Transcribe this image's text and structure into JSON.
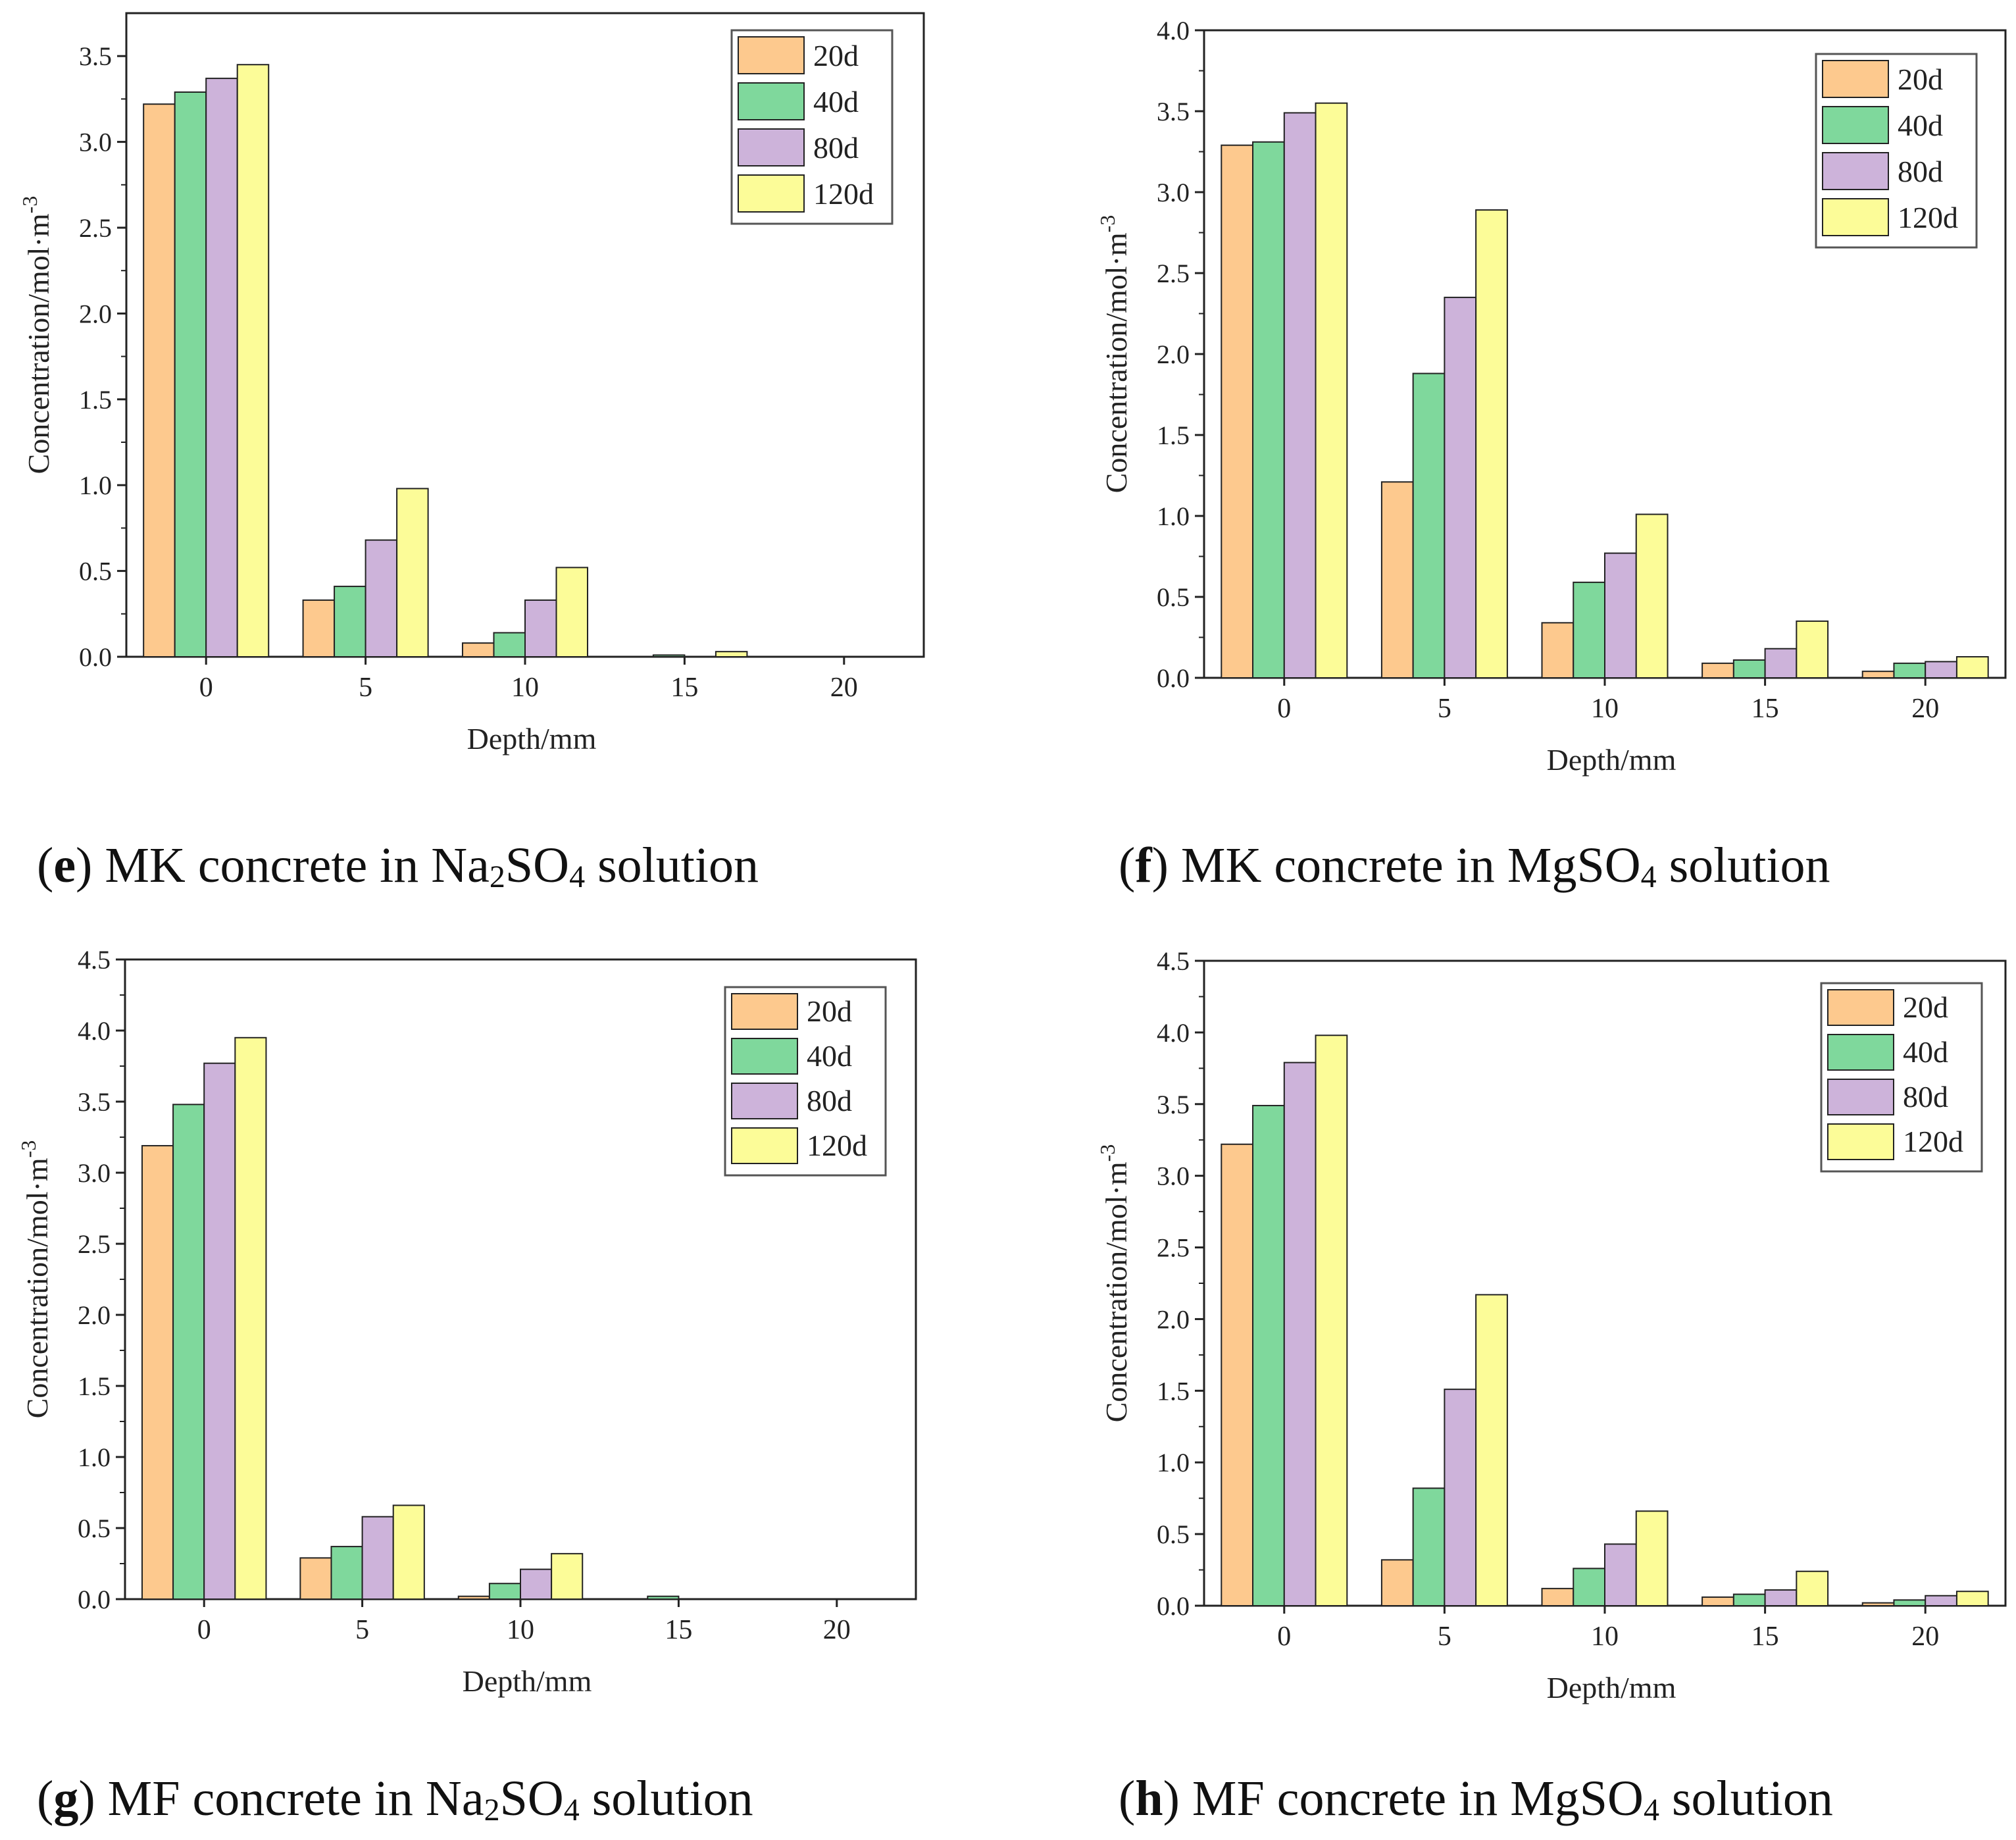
{
  "colors": {
    "20d": "#FDC98E",
    "40d": "#7FD89C",
    "80d": "#CDB3DA",
    "120d": "#FCFC98",
    "axis": "#222222"
  },
  "captions": [
    {
      "letter": "e",
      "pre": ") MK concrete in Na",
      "sub1": "2",
      "mid": "SO",
      "sub2": "4",
      "post": " solution"
    },
    {
      "letter": "f",
      "pre": ") MK concrete in MgSO",
      "sub1": "4",
      "mid": "",
      "sub2": "",
      "post": " solution"
    },
    {
      "letter": "g",
      "pre": ") MF concrete in Na",
      "sub1": "2",
      "mid": "SO",
      "sub2": "4",
      "post": " solution"
    },
    {
      "letter": "h",
      "pre": ") MF concrete in MgSO",
      "sub1": "4",
      "mid": "",
      "sub2": "",
      "post": " solution"
    }
  ],
  "chart_data": [
    {
      "type": "bar",
      "panel": "e",
      "categories": [
        "0",
        "5",
        "10",
        "15",
        "20"
      ],
      "xlabel": "Depth/mm",
      "ylabel": "Concentration/mol·m",
      "ylabel_sup": "-3",
      "ylim": [
        0,
        3.75
      ],
      "yticks": [
        "0.0",
        "0.5",
        "1.0",
        "1.5",
        "2.0",
        "2.5",
        "3.0",
        "3.5"
      ],
      "legend_position": "top-right",
      "series": [
        {
          "name": "20d",
          "values": [
            3.22,
            0.33,
            0.08,
            0.0,
            0.0
          ]
        },
        {
          "name": "40d",
          "values": [
            3.29,
            0.41,
            0.14,
            0.01,
            0.0
          ]
        },
        {
          "name": "80d",
          "values": [
            3.37,
            0.68,
            0.33,
            0.0,
            0.0
          ]
        },
        {
          "name": "120d",
          "values": [
            3.45,
            0.98,
            0.52,
            0.03,
            0.0
          ]
        }
      ]
    },
    {
      "type": "bar",
      "panel": "f",
      "categories": [
        "0",
        "5",
        "10",
        "15",
        "20"
      ],
      "xlabel": "Depth/mm",
      "ylabel": "Concentration/mol·m",
      "ylabel_sup": "-3",
      "ylim": [
        0,
        4.0
      ],
      "yticks": [
        "0.0",
        "0.5",
        "1.0",
        "1.5",
        "2.0",
        "2.5",
        "3.0",
        "3.5",
        "4.0"
      ],
      "legend_position": "top-right",
      "series": [
        {
          "name": "20d",
          "values": [
            3.29,
            1.21,
            0.34,
            0.09,
            0.04
          ]
        },
        {
          "name": "40d",
          "values": [
            3.31,
            1.88,
            0.59,
            0.11,
            0.09
          ]
        },
        {
          "name": "80d",
          "values": [
            3.49,
            2.35,
            0.77,
            0.18,
            0.1
          ]
        },
        {
          "name": "120d",
          "values": [
            3.55,
            2.89,
            1.01,
            0.35,
            0.13
          ]
        }
      ]
    },
    {
      "type": "bar",
      "panel": "g",
      "categories": [
        "0",
        "5",
        "10",
        "15",
        "20"
      ],
      "xlabel": "Depth/mm",
      "ylabel": "Concentration/mol·m",
      "ylabel_sup": "-3",
      "ylim": [
        0,
        4.5
      ],
      "yticks": [
        "0.0",
        "0.5",
        "1.0",
        "1.5",
        "2.0",
        "2.5",
        "3.0",
        "3.5",
        "4.0",
        "4.5"
      ],
      "legend_position": "top-right",
      "series": [
        {
          "name": "20d",
          "values": [
            3.19,
            0.29,
            0.02,
            0.0,
            0.0
          ]
        },
        {
          "name": "40d",
          "values": [
            3.48,
            0.37,
            0.11,
            0.02,
            0.0
          ]
        },
        {
          "name": "80d",
          "values": [
            3.77,
            0.58,
            0.21,
            0.0,
            0.0
          ]
        },
        {
          "name": "120d",
          "values": [
            3.95,
            0.66,
            0.32,
            0.0,
            0.0
          ]
        }
      ]
    },
    {
      "type": "bar",
      "panel": "h",
      "categories": [
        "0",
        "5",
        "10",
        "15",
        "20"
      ],
      "xlabel": "Depth/mm",
      "ylabel": "Concentration/mol·m",
      "ylabel_sup": "-3",
      "ylim": [
        0,
        4.5
      ],
      "yticks": [
        "0.0",
        "0.5",
        "1.0",
        "1.5",
        "2.0",
        "2.5",
        "3.0",
        "3.5",
        "4.0",
        "4.5"
      ],
      "legend_position": "top-right",
      "series": [
        {
          "name": "20d",
          "values": [
            3.22,
            0.32,
            0.12,
            0.06,
            0.02
          ]
        },
        {
          "name": "40d",
          "values": [
            3.49,
            0.82,
            0.26,
            0.08,
            0.04
          ]
        },
        {
          "name": "80d",
          "values": [
            3.79,
            1.51,
            0.43,
            0.11,
            0.07
          ]
        },
        {
          "name": "120d",
          "values": [
            3.98,
            2.17,
            0.66,
            0.24,
            0.1
          ]
        }
      ]
    }
  ]
}
